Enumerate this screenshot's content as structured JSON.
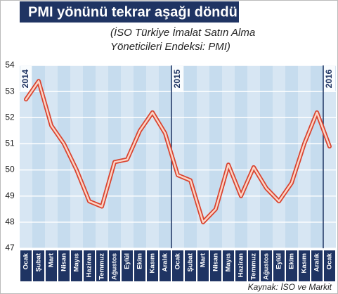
{
  "chart_data": {
    "type": "line",
    "title": "PMI yönünü tekrar aşağı döndü",
    "subtitle": [
      "(İSO Türkiye İmalat Satın Alma",
      "Yöneticileri Endeksi: PMI)"
    ],
    "source": "Kaynak: İSO ve Markit",
    "year_labels": [
      "2014",
      "2015",
      "2016"
    ],
    "categories": [
      "Ocak",
      "Şubat",
      "Mart",
      "Nisan",
      "Mayıs",
      "Haziran",
      "Temmuz",
      "Ağustos",
      "Eylül",
      "Ekim",
      "Kasım",
      "Aralık",
      "Ocak",
      "Şubat",
      "Mart",
      "Nisan",
      "Mayıs",
      "Haziran",
      "Temmuz",
      "Ağustos",
      "Eylül",
      "Ekim",
      "Kasım",
      "Aralık",
      "Ocak"
    ],
    "values": [
      52.7,
      53.4,
      51.7,
      51.0,
      50.0,
      48.8,
      48.6,
      50.3,
      50.4,
      51.5,
      52.2,
      51.4,
      49.8,
      49.6,
      48.0,
      48.5,
      50.2,
      49.0,
      50.1,
      49.3,
      48.8,
      49.5,
      51.0,
      52.2,
      50.9
    ],
    "color": "#d9432f",
    "ylim": [
      47,
      54
    ],
    "yticks": [
      47,
      48,
      49,
      50,
      51,
      52,
      53,
      54
    ],
    "grid": true
  }
}
